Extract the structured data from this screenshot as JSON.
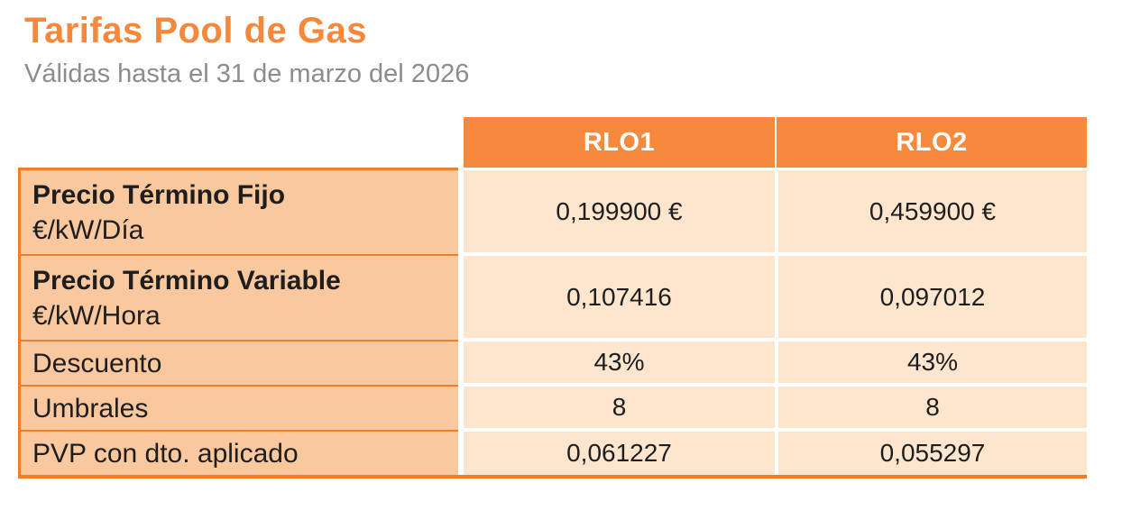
{
  "page": {
    "title": "Tarifas Pool de Gas",
    "subtitle": "Válidas hasta el 31 de marzo del 2026"
  },
  "colors": {
    "brand_orange": "#F5893C",
    "border_orange": "#EF7D2A",
    "label_cell_bg": "#FAC89E",
    "value_cell_bg": "#FDE5CE",
    "subtitle_gray": "#8C8C8F",
    "text_dark": "#1E1E1E",
    "header_text": "#FFFFFF"
  },
  "table": {
    "column_headers": [
      "RLO1",
      "RLO2"
    ],
    "rows": [
      {
        "label_bold": "Precio Término Fijo",
        "label_regular": "€/kW/Día",
        "values": [
          "0,199900 €",
          "0,459900 €"
        ]
      },
      {
        "label_bold": "Precio Término Variable",
        "label_regular": "€/kW/Hora",
        "values": [
          "0,107416",
          "0,097012"
        ]
      },
      {
        "label_bold": "",
        "label_regular": "Descuento",
        "values": [
          "43%",
          "43%"
        ]
      },
      {
        "label_bold": "",
        "label_regular": "Umbrales",
        "values": [
          "8",
          "8"
        ]
      },
      {
        "label_bold": "",
        "label_regular": "PVP con dto. aplicado",
        "values": [
          "0,061227",
          "0,055297"
        ]
      }
    ]
  }
}
